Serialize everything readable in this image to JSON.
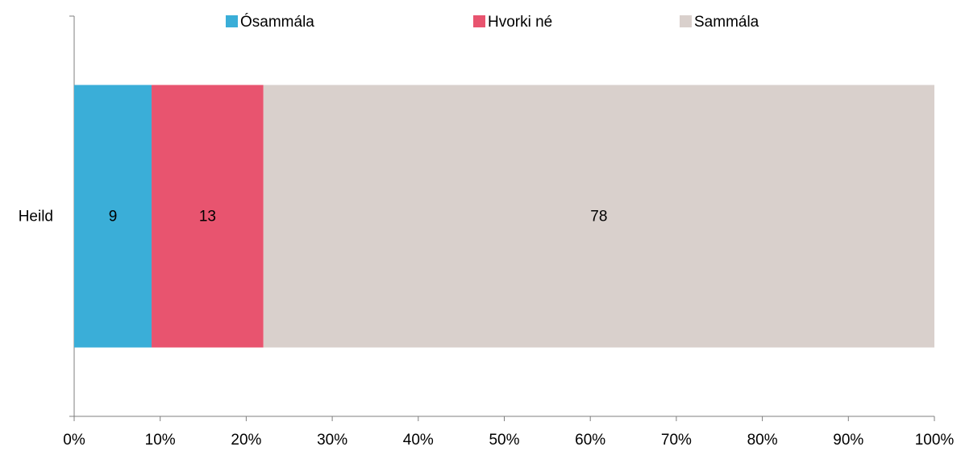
{
  "chart_data": {
    "type": "stacked_bar_horizontal",
    "categories": [
      "Heild"
    ],
    "series": [
      {
        "name": "Ósammála",
        "color": "#3aaed8",
        "values": [
          9
        ]
      },
      {
        "name": "Hvorki né",
        "color": "#e8546f",
        "values": [
          13
        ]
      },
      {
        "name": "Sammála",
        "color": "#d9d0cc",
        "values": [
          78
        ]
      }
    ],
    "xlim": [
      0,
      100
    ],
    "xticks": [
      {
        "value": 0,
        "label": "0%"
      },
      {
        "value": 10,
        "label": "10%"
      },
      {
        "value": 20,
        "label": "20%"
      },
      {
        "value": 30,
        "label": "30%"
      },
      {
        "value": 40,
        "label": "40%"
      },
      {
        "value": 50,
        "label": "50%"
      },
      {
        "value": 60,
        "label": "60%"
      },
      {
        "value": 70,
        "label": "70%"
      },
      {
        "value": 80,
        "label": "80%"
      },
      {
        "value": 90,
        "label": "90%"
      },
      {
        "value": 100,
        "label": "100%"
      }
    ],
    "legend": "top"
  }
}
